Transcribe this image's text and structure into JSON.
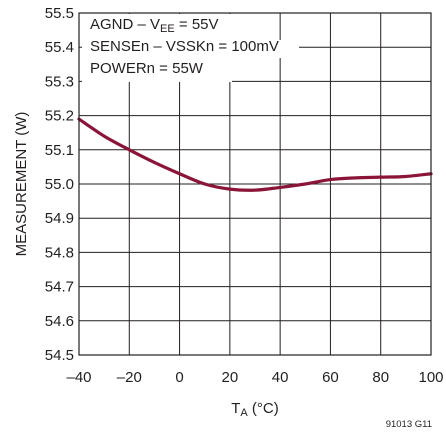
{
  "chart_data": {
    "type": "line",
    "xlabel_main": "T",
    "xlabel_sub": "A",
    "xlabel_unit": " (°C)",
    "ylabel": "MEASUREMENT (W)",
    "xlim": [
      -40,
      100
    ],
    "ylim": [
      54.5,
      55.5
    ],
    "xticks": [
      "–40",
      "–20",
      "0",
      "20",
      "40",
      "60",
      "80",
      "100"
    ],
    "xtick_values": [
      -40,
      -20,
      0,
      20,
      40,
      60,
      80,
      100
    ],
    "yticks": [
      "54.5",
      "54.6",
      "54.7",
      "54.8",
      "54.9",
      "55.0",
      "55.1",
      "55.2",
      "55.3",
      "55.4",
      "55.5"
    ],
    "ytick_values": [
      54.5,
      54.6,
      54.7,
      54.8,
      54.9,
      55.0,
      55.1,
      55.2,
      55.3,
      55.4,
      55.5
    ],
    "grid": true,
    "series": [
      {
        "color": "#8b1538",
        "x": [
          -40,
          -30,
          -20,
          -10,
          0,
          10,
          20,
          30,
          40,
          50,
          60,
          70,
          80,
          90,
          100
        ],
        "y": [
          55.19,
          55.14,
          55.1,
          55.063,
          55.03,
          55.0,
          54.985,
          54.982,
          54.99,
          55.0,
          55.013,
          55.018,
          55.02,
          55.022,
          55.03
        ]
      }
    ],
    "annotations": [
      {
        "part1": "AGND – V",
        "sub": "EE",
        "part2": " = 55V"
      },
      {
        "text": "SENSEn – VSSKn = 100mV"
      },
      {
        "text": "POWERn = 55W"
      }
    ],
    "figure_id": "91013 G11"
  }
}
